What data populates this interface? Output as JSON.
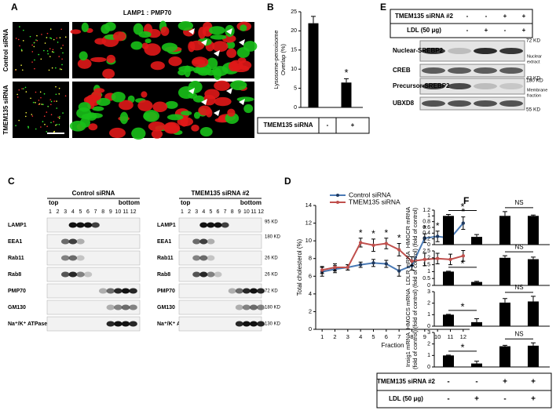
{
  "panel_labels": [
    "A",
    "B",
    "C",
    "D",
    "E",
    "F"
  ],
  "panel_a": {
    "stain_1": "LAMP1",
    "separator": ":",
    "stain_2": "PMP70",
    "rows": [
      "Control siRNA",
      "TMEM135 siRNA"
    ]
  },
  "panel_b_table": {
    "label": "TMEM135 siRNA",
    "cells": [
      "-",
      "+"
    ]
  },
  "panel_c": {
    "groups": [
      "Control siRNA",
      "TMEM135 siRNA #2"
    ],
    "top": "top",
    "bottom": "bottom",
    "lanes": [
      "1",
      "2",
      "3",
      "4",
      "5",
      "6",
      "7",
      "8",
      "9",
      "10",
      "11",
      "12"
    ],
    "proteins": [
      "LAMP1",
      "EEA1",
      "Rab11",
      "Rab8",
      "PMP70",
      "GM130",
      "Na⁺/K⁺ ATPase"
    ],
    "markers": [
      "95 KD",
      "180 KD",
      "26 KD",
      "26 KD",
      "72 KD",
      "180 KD",
      "130 KD"
    ]
  },
  "panel_e": {
    "table": [
      {
        "label": "TMEM135 siRNA #2",
        "cells": [
          "-",
          "-",
          "+",
          "+"
        ]
      },
      {
        "label": "LDL (50 μg)",
        "cells": [
          "-",
          "+",
          "-",
          "+"
        ]
      }
    ],
    "blots": [
      "Nuclear-SREBP2",
      "CREB",
      "Precursor-SREBP2",
      "UBXD8"
    ],
    "markers": [
      "72 KD",
      "43 KD",
      "180 KD",
      "55 KD"
    ],
    "fractions": [
      [
        "Nuclear",
        "extract"
      ],
      [
        "Membrane",
        "fraction"
      ]
    ]
  },
  "panel_f_table": [
    {
      "label": "TMEM135 siRNA #2",
      "cells": [
        "-",
        "-",
        "+",
        "+"
      ]
    },
    {
      "label": "LDL (50 μg)",
      "cells": [
        "-",
        "+",
        "-",
        "+"
      ]
    }
  ],
  "chart_data": [
    {
      "type": "bar",
      "ylabel": [
        "Lysosome-peroxisome",
        "Overlap (%)"
      ],
      "values": [
        22,
        6.5
      ],
      "errors": [
        1.8,
        1.0
      ],
      "color": "#000000",
      "ylim": [
        0,
        25
      ],
      "yticks": [
        0,
        5,
        10,
        15,
        20,
        25
      ],
      "annotations": [
        "*"
      ]
    },
    {
      "type": "line",
      "ylabel": "Total cholesterol (%)",
      "xlabel": "Fraction",
      "x": [
        1,
        2,
        3,
        4,
        5,
        6,
        7,
        8,
        9,
        10,
        11,
        12
      ],
      "xlim": [
        0.5,
        12.5
      ],
      "xticks": [
        1,
        2,
        3,
        4,
        5,
        6,
        7,
        8,
        9,
        10,
        11,
        12
      ],
      "ylim": [
        0,
        14
      ],
      "yticks": [
        0,
        2,
        4,
        6,
        8,
        10,
        12,
        14
      ],
      "series": [
        {
          "name": "Control siRNA",
          "color": "#4a7ab5",
          "values": [
            6.5,
            6.8,
            7.0,
            7.3,
            7.5,
            7.4,
            6.6,
            7.2,
            10.3,
            10.5,
            10.3,
            12.0
          ],
          "errors": [
            0.5,
            0.4,
            0.3,
            0.3,
            0.4,
            0.4,
            0.6,
            0.5,
            0.5,
            0.6,
            0.5,
            0.7
          ]
        },
        {
          "name": "TMEM135 siRNA",
          "color": "#c0504d",
          "values": [
            6.7,
            7.0,
            7.0,
            9.8,
            9.5,
            9.7,
            9.0,
            7.7,
            7.9,
            8.0,
            7.9,
            8.3
          ],
          "errors": [
            0.4,
            0.4,
            0.3,
            0.5,
            0.7,
            0.6,
            0.7,
            0.5,
            0.7,
            0.6,
            0.6,
            0.6
          ]
        }
      ],
      "annotations": [
        {
          "x": 4,
          "text": "*"
        },
        {
          "x": 5,
          "text": "*"
        },
        {
          "x": 6,
          "text": "*"
        },
        {
          "x": 7,
          "text": "*"
        },
        {
          "x": 9,
          "text": "*"
        },
        {
          "x": 10,
          "text": "*"
        },
        {
          "x": 11,
          "text": "*"
        },
        {
          "x": 12,
          "text": "*"
        }
      ]
    },
    {
      "type": "bar",
      "ylabel": [
        "HMGCR mRNA",
        "(fold of control)"
      ],
      "values": [
        1.0,
        0.27,
        1.0,
        1.0
      ],
      "errors": [
        0.05,
        0.08,
        0.15,
        0.03
      ],
      "color": "#000000",
      "ylim": [
        0,
        1.2
      ],
      "yticks": [
        0,
        0.2,
        0.4,
        0.6,
        0.8,
        1,
        1.2
      ],
      "annotations": [
        "*",
        "NS"
      ]
    },
    {
      "type": "bar",
      "ylabel": [
        "LDLR mRNA",
        "(fold of control)"
      ],
      "values": [
        1.0,
        0.25,
        2.0,
        1.9
      ],
      "errors": [
        0.03,
        0.05,
        0.15,
        0.15
      ],
      "color": "#000000",
      "ylim": [
        0,
        2.5
      ],
      "yticks": [
        0,
        0.5,
        1,
        1.5,
        2,
        2.5
      ],
      "annotations": [
        "*",
        "NS"
      ]
    },
    {
      "type": "bar",
      "ylabel": [
        "HMGCS mRNA",
        "(fold of control)"
      ],
      "values": [
        1.0,
        0.35,
        2.05,
        2.15
      ],
      "errors": [
        0.03,
        0.3,
        0.35,
        0.45
      ],
      "color": "#000000",
      "ylim": [
        0,
        3
      ],
      "yticks": [
        0,
        1,
        2,
        3
      ],
      "annotations": [
        "*",
        "NS"
      ]
    },
    {
      "type": "bar",
      "ylabel": [
        "Insig1 mRNA",
        "(fold of control)"
      ],
      "values": [
        1.0,
        0.3,
        1.8,
        1.85
      ],
      "errors": [
        0.03,
        0.2,
        0.08,
        0.25
      ],
      "color": "#000000",
      "ylim": [
        0,
        3
      ],
      "yticks": [
        0,
        1,
        2,
        3
      ],
      "annotations": [
        "*",
        "NS"
      ]
    }
  ]
}
